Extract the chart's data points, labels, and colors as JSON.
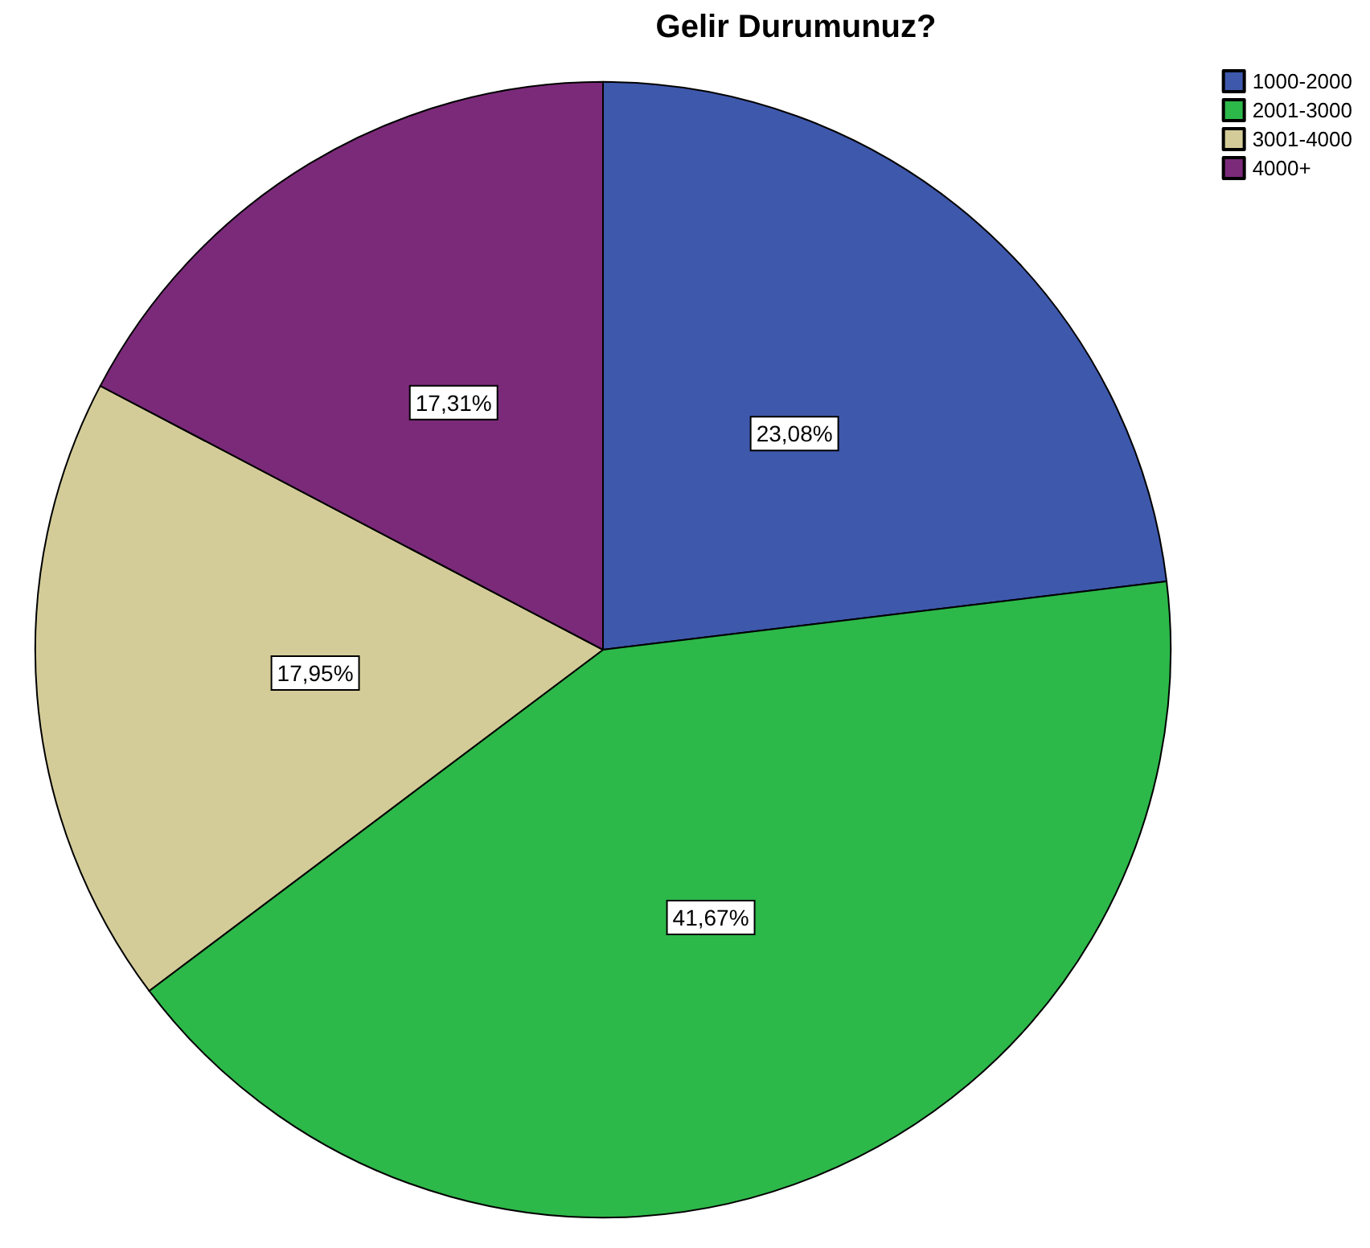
{
  "chart_data": {
    "type": "pie",
    "title": "Gelir Durumunuz?",
    "categories": [
      "1000-2000",
      "2001-3000",
      "3001-4000",
      "4000+"
    ],
    "values": [
      23.08,
      41.67,
      17.95,
      17.31
    ],
    "value_labels": [
      "23,08%",
      "41,67%",
      "17,95%",
      "17,31%"
    ],
    "colors": [
      "#3e58ac",
      "#2db84a",
      "#d4cc98",
      "#7b2a7a"
    ],
    "legend": "top right"
  }
}
